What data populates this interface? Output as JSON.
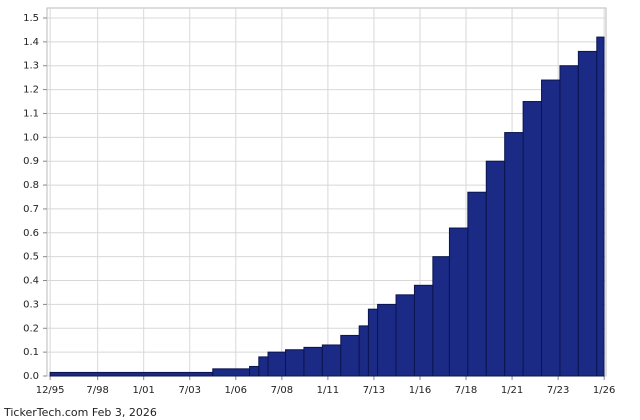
{
  "chart_data": {
    "type": "step-bar",
    "footer": "TickerTech.com  Feb 3, 2026",
    "color": "#1b2a85",
    "edge_color": "#0b154f",
    "x": [
      1995.92,
      2004.75,
      2006.75,
      2007.25,
      2007.75,
      2008.7,
      2009.7,
      2010.7,
      2011.7,
      2012.7,
      2013.2,
      2013.7,
      2014.7,
      2015.7,
      2016.7,
      2017.6,
      2018.6,
      2019.6,
      2020.6,
      2021.6,
      2022.6,
      2023.6,
      2024.6,
      2025.6
    ],
    "values": [
      0.015,
      0.03,
      0.04,
      0.08,
      0.1,
      0.11,
      0.12,
      0.13,
      0.17,
      0.21,
      0.28,
      0.3,
      0.34,
      0.38,
      0.5,
      0.62,
      0.77,
      0.9,
      1.02,
      1.15,
      1.24,
      1.3,
      1.36,
      1.42
    ],
    "xlim": [
      1995.75,
      2026.1
    ],
    "ylim": [
      0,
      1.5
    ],
    "xticks": [
      {
        "value": 1995.92,
        "label": "12/95"
      },
      {
        "value": 1998.5,
        "label": "7/98"
      },
      {
        "value": 2001.0,
        "label": "1/01"
      },
      {
        "value": 2003.5,
        "label": "7/03"
      },
      {
        "value": 2006.0,
        "label": "1/06"
      },
      {
        "value": 2008.5,
        "label": "7/08"
      },
      {
        "value": 2011.0,
        "label": "1/11"
      },
      {
        "value": 2013.5,
        "label": "7/13"
      },
      {
        "value": 2016.0,
        "label": "1/16"
      },
      {
        "value": 2018.5,
        "label": "7/18"
      },
      {
        "value": 2021.0,
        "label": "1/21"
      },
      {
        "value": 2023.5,
        "label": "7/23"
      },
      {
        "value": 2026.0,
        "label": "1/26"
      }
    ],
    "yticks": [
      {
        "value": 0,
        "label": "0.0"
      },
      0.1,
      0.2,
      0.3,
      0.4,
      0.5,
      0.6,
      0.7,
      0.8,
      0.9,
      {
        "value": 1,
        "label": "1.0"
      },
      1.1,
      1.2,
      1.3,
      1.4,
      1.5
    ],
    "grid": true
  }
}
